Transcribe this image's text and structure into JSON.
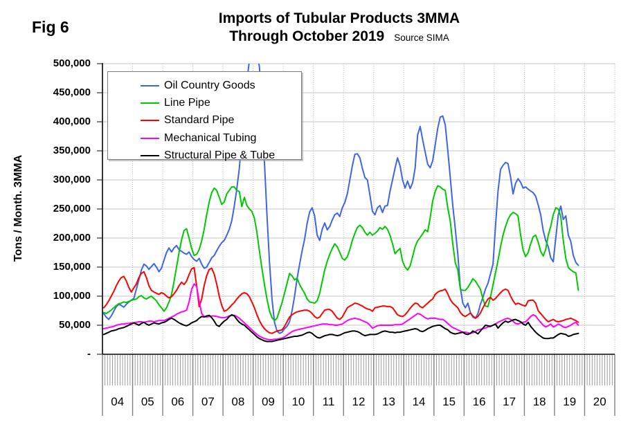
{
  "figure": {
    "fig_label": "Fig 6",
    "title_line1": "Imports of Tubular Products 3MMA",
    "title_line2": "Through October 2019",
    "source_note": "Source SIMA"
  },
  "chart_data": {
    "type": "line",
    "title": "Imports of Tubular Products 3MMA Through October 2019",
    "source": "SIMA",
    "ylabel": "Tons / Month. 3MMA",
    "ylim": [
      0,
      500000
    ],
    "y_tick_step": 50000,
    "y_ticks": [
      {
        "value": 500000,
        "label": "500,000"
      },
      {
        "value": 450000,
        "label": "450,000"
      },
      {
        "value": 400000,
        "label": "400,000"
      },
      {
        "value": 350000,
        "label": "350,000"
      },
      {
        "value": 300000,
        "label": "300,000"
      },
      {
        "value": 250000,
        "label": "250,000"
      },
      {
        "value": 200000,
        "label": "200,000"
      },
      {
        "value": 150000,
        "label": "150,000"
      },
      {
        "value": 100000,
        "label": "100,000"
      },
      {
        "value": 50000,
        "label": "50,000"
      },
      {
        "value": 0,
        "label": "-"
      }
    ],
    "x_year_labels": [
      "04",
      "05",
      "06",
      "07",
      "08",
      "09",
      "10",
      "11",
      "12",
      "13",
      "14",
      "15",
      "16",
      "17",
      "18",
      "19",
      "20"
    ],
    "x_note": "Monthly 3-month-moving-average values, January 2004 through October 2019; the 2020 slot is empty.",
    "grid": true,
    "legend_position": "upper-left-inside",
    "series": [
      {
        "name": "Oil Country Goods",
        "color": "#3B64E8",
        "note": "Peak Nov 2008 - Feb 2009 exceeds axis maximum and is clipped at 500,000",
        "monthly_values": [
          70000,
          64000,
          60000,
          66000,
          74000,
          82000,
          86000,
          84000,
          81000,
          86000,
          90000,
          93000,
          96000,
          112000,
          128000,
          145000,
          155000,
          152000,
          146000,
          151000,
          156000,
          150000,
          142000,
          148000,
          162000,
          175000,
          183000,
          176000,
          183000,
          187000,
          180000,
          177000,
          174000,
          172000,
          176000,
          168000,
          163000,
          160000,
          165000,
          155000,
          148000,
          150000,
          158000,
          166000,
          170000,
          178000,
          186000,
          192000,
          196000,
          205000,
          215000,
          230000,
          255000,
          285000,
          320000,
          370000,
          420000,
          470000,
          505000,
          520000,
          525000,
          515000,
          495000,
          420000,
          330000,
          240000,
          160000,
          95000,
          55000,
          40000,
          36000,
          38000,
          44000,
          48000,
          56000,
          75000,
          100000,
          130000,
          155000,
          178000,
          198000,
          225000,
          245000,
          252000,
          238000,
          205000,
          196000,
          215000,
          226000,
          214000,
          220000,
          231000,
          240000,
          243000,
          237000,
          252000,
          261000,
          276000,
          300000,
          324000,
          344000,
          345000,
          338000,
          320000,
          304000,
          300000,
          274000,
          246000,
          240000,
          252000,
          256000,
          244000,
          255000,
          256000,
          280000,
          300000,
          320000,
          338000,
          324000,
          300000,
          286000,
          298000,
          285000,
          295000,
          320000,
          377000,
          392000,
          369000,
          348000,
          327000,
          321000,
          333000,
          360000,
          389000,
          408000,
          410000,
          395000,
          351000,
          304000,
          256000,
          215000,
          172000,
          115000,
          88000,
          80000,
          88000,
          72000,
          64000,
          62000,
          70000,
          86000,
          98000,
          112000,
          122000,
          138000,
          155000,
          220000,
          280000,
          318000,
          325000,
          330000,
          328000,
          305000,
          276000,
          294000,
          302000,
          296000,
          286000,
          288000,
          284000,
          281000,
          278000,
          272000,
          257000,
          240000,
          213000,
          196000,
          185000,
          166000,
          159000,
          200000,
          240000,
          255000,
          232000,
          238000,
          205000,
          194000,
          170000,
          158000,
          153000
        ]
      },
      {
        "name": "Line Pipe",
        "color": "#00C800",
        "monthly_values": [
          72000,
          70000,
          73000,
          76000,
          80000,
          84000,
          87000,
          88000,
          90000,
          89000,
          91000,
          93000,
          94000,
          95000,
          99000,
          101000,
          97000,
          95000,
          98000,
          100000,
          96000,
          92000,
          85000,
          80000,
          74000,
          80000,
          90000,
          103000,
          125000,
          150000,
          175000,
          197000,
          213000,
          216000,
          200000,
          182000,
          170000,
          172000,
          180000,
          195000,
          215000,
          240000,
          262000,
          278000,
          286000,
          282000,
          270000,
          258000,
          262000,
          276000,
          282000,
          288000,
          288000,
          282000,
          280000,
          254000,
          270000,
          256000,
          250000,
          246000,
          234000,
          210000,
          178000,
          148000,
          120000,
          95000,
          75000,
          63000,
          58000,
          62000,
          75000,
          89000,
          105000,
          122000,
          139000,
          135000,
          128000,
          131000,
          120000,
          112000,
          105000,
          95000,
          90000,
          89000,
          88000,
          92000,
          105000,
          125000,
          145000,
          160000,
          172000,
          182000,
          190000,
          185000,
          175000,
          165000,
          162000,
          168000,
          180000,
          196000,
          208000,
          218000,
          222000,
          218000,
          210000,
          205000,
          210000,
          205000,
          208000,
          212000,
          218000,
          215000,
          220000,
          215000,
          205000,
          190000,
          173000,
          178000,
          182000,
          160000,
          150000,
          145000,
          152000,
          168000,
          185000,
          195000,
          201000,
          207000,
          214000,
          211000,
          235000,
          264000,
          280000,
          290000,
          288000,
          284000,
          282000,
          252000,
          229000,
          190000,
          157000,
          145000,
          112000,
          110000,
          110000,
          115000,
          122000,
          130000,
          126000,
          119000,
          112000,
          95000,
          83000,
          82000,
          98000,
          119000,
          140000,
          161000,
          185000,
          205000,
          220000,
          232000,
          240000,
          244000,
          242000,
          238000,
          205000,
          179000,
          168000,
          175000,
          190000,
          202000,
          205000,
          193000,
          177000,
          169000,
          180000,
          205000,
          220000,
          240000,
          252000,
          250000,
          237000,
          196000,
          165000,
          149000,
          145000,
          142000,
          140000,
          110000
        ]
      },
      {
        "name": "Standard Pipe",
        "color": "#FF0000",
        "monthly_values": [
          80000,
          85000,
          92000,
          100000,
          108000,
          118000,
          126000,
          132000,
          134000,
          126000,
          115000,
          107000,
          114000,
          121000,
          132000,
          139000,
          142000,
          132000,
          118000,
          110000,
          107000,
          105000,
          103000,
          106000,
          104000,
          100000,
          97000,
          99000,
          104000,
          110000,
          118000,
          124000,
          120000,
          126000,
          137000,
          147000,
          149000,
          118000,
          82000,
          95000,
          118000,
          135000,
          146000,
          148000,
          138000,
          121000,
          100000,
          84000,
          74000,
          76000,
          80000,
          85000,
          89000,
          95000,
          100000,
          104000,
          106000,
          104000,
          99000,
          90000,
          80000,
          68000,
          58000,
          50000,
          44000,
          40000,
          37000,
          36000,
          38000,
          40000,
          41000,
          42000,
          48000,
          56000,
          64000,
          68000,
          71000,
          73000,
          74000,
          75000,
          76000,
          76000,
          74000,
          70000,
          65000,
          62000,
          64000,
          70000,
          76000,
          77000,
          77000,
          74000,
          68000,
          62000,
          60000,
          64000,
          72000,
          80000,
          83000,
          85000,
          88000,
          87000,
          85000,
          83000,
          80000,
          78000,
          77000,
          74000,
          80000,
          81000,
          82000,
          83000,
          83000,
          82000,
          82000,
          80000,
          74000,
          68000,
          66000,
          65000,
          68000,
          73000,
          79000,
          84000,
          88000,
          87000,
          82000,
          80000,
          84000,
          88000,
          92000,
          95000,
          103000,
          107000,
          109000,
          110000,
          112000,
          104000,
          94000,
          88000,
          84000,
          80000,
          72000,
          67000,
          65000,
          68000,
          71000,
          66000,
          62000,
          65000,
          71000,
          80000,
          88000,
          95000,
          98000,
          93000,
          96000,
          101000,
          106000,
          110000,
          112000,
          110000,
          100000,
          92000,
          86000,
          88000,
          86000,
          84000,
          83000,
          92000,
          93000,
          93000,
          88000,
          75000,
          70000,
          65000,
          60000,
          56000,
          58000,
          60000,
          57000,
          56000,
          57000,
          58000,
          60000,
          61000,
          62000,
          60000,
          58000,
          55000
        ]
      },
      {
        "name": "Mechanical Tubing",
        "color": "#FF00FF",
        "monthly_values": [
          44000,
          45000,
          46000,
          47000,
          48000,
          50000,
          51000,
          52000,
          52000,
          53000,
          53000,
          54000,
          54000,
          55000,
          56000,
          56000,
          55000,
          56000,
          57000,
          57000,
          56000,
          57000,
          58000,
          58000,
          58000,
          60000,
          62000,
          64000,
          66000,
          69000,
          71000,
          73000,
          74000,
          76000,
          90000,
          112000,
          121000,
          117000,
          92000,
          70000,
          65000,
          64000,
          65000,
          66000,
          66000,
          65000,
          64000,
          63000,
          63000,
          64000,
          66000,
          67000,
          67000,
          65000,
          62000,
          58000,
          54000,
          50000,
          46000,
          42000,
          38000,
          34000,
          31000,
          29000,
          27000,
          26000,
          25000,
          25000,
          26000,
          26000,
          27000,
          28000,
          30000,
          33000,
          36000,
          39000,
          41000,
          42000,
          43000,
          44000,
          45000,
          46000,
          47000,
          48000,
          49000,
          50000,
          51000,
          52000,
          52000,
          52000,
          51000,
          51000,
          50000,
          50000,
          51000,
          52000,
          55000,
          58000,
          60000,
          61000,
          62000,
          61000,
          60000,
          58000,
          56000,
          54000,
          50000,
          45000,
          47000,
          49000,
          50000,
          50000,
          50000,
          50000,
          50000,
          50000,
          51000,
          51000,
          51000,
          52000,
          55000,
          58000,
          61000,
          64000,
          67000,
          70000,
          69000,
          66000,
          63000,
          61000,
          62000,
          62000,
          62000,
          61000,
          60000,
          60000,
          57000,
          53000,
          49000,
          46000,
          44000,
          42000,
          40000,
          38000,
          38000,
          37000,
          36000,
          37000,
          39000,
          42000,
          43000,
          44000,
          45000,
          47000,
          48000,
          50000,
          52000,
          55000,
          57000,
          59000,
          61000,
          62000,
          60000,
          57000,
          53000,
          52000,
          54000,
          55000,
          56000,
          60000,
          65000,
          68000,
          66000,
          60000,
          55000,
          50000,
          47000,
          49000,
          52000,
          47000,
          49000,
          52000,
          50000,
          47000,
          46000,
          48000,
          50000,
          53000,
          55000,
          50000
        ]
      },
      {
        "name": "Structural Pipe & Tube",
        "color": "#000000",
        "monthly_values": [
          34000,
          36000,
          38000,
          40000,
          41000,
          42000,
          44000,
          45000,
          46000,
          48000,
          50000,
          52000,
          54000,
          52000,
          50000,
          53000,
          55000,
          52000,
          50000,
          52000,
          54000,
          53000,
          52000,
          54000,
          55000,
          57000,
          60000,
          62000,
          60000,
          57000,
          54000,
          52000,
          50000,
          49000,
          51000,
          54000,
          56000,
          58000,
          62000,
          65000,
          64000,
          66000,
          67000,
          63000,
          57000,
          50000,
          48000,
          53000,
          57000,
          60000,
          65000,
          68000,
          66000,
          60000,
          55000,
          52000,
          50000,
          46000,
          42000,
          38000,
          34000,
          30000,
          27000,
          25000,
          23000,
          22000,
          22000,
          22000,
          23000,
          24000,
          25000,
          26000,
          27000,
          28000,
          29000,
          30000,
          31000,
          31000,
          32000,
          33000,
          35000,
          37000,
          38000,
          36000,
          32000,
          29000,
          28000,
          30000,
          32000,
          33000,
          34000,
          34000,
          33000,
          32000,
          33000,
          35000,
          37000,
          38000,
          39000,
          40000,
          40000,
          39000,
          37000,
          34000,
          32000,
          33000,
          34000,
          34000,
          34000,
          35000,
          37000,
          39000,
          40000,
          39000,
          38000,
          38000,
          37000,
          38000,
          38000,
          39000,
          40000,
          41000,
          42000,
          43000,
          44000,
          43000,
          40000,
          39000,
          41000,
          44000,
          46000,
          48000,
          49000,
          50000,
          50000,
          47000,
          44000,
          42000,
          38000,
          36000,
          35000,
          36000,
          37000,
          38000,
          35000,
          34000,
          36000,
          40000,
          38000,
          35000,
          40000,
          45000,
          50000,
          49000,
          48000,
          50000,
          52000,
          45000,
          50000,
          54000,
          57000,
          55000,
          57000,
          59000,
          60000,
          58000,
          56000,
          52000,
          50000,
          55000,
          48000,
          43000,
          38000,
          34000,
          31000,
          28000,
          27000,
          27000,
          28000,
          28000,
          31000,
          34000,
          36000,
          35000,
          34000,
          31000,
          32000,
          34000,
          35000,
          36000
        ]
      }
    ]
  }
}
